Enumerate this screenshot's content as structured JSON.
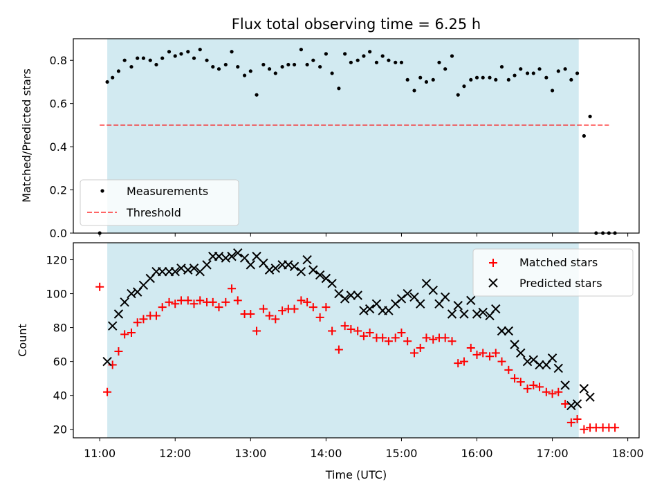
{
  "chart_data": {
    "title": "Flux total observing time = 6.25 h",
    "xlabel": "Time (UTC)",
    "x_unit": "hours UTC",
    "x_ticks": [
      {
        "value": 11,
        "label": "11:00"
      },
      {
        "value": 12,
        "label": "12:00"
      },
      {
        "value": 13,
        "label": "13:00"
      },
      {
        "value": 14,
        "label": "14:00"
      },
      {
        "value": 15,
        "label": "15:00"
      },
      {
        "value": 16,
        "label": "16:00"
      },
      {
        "value": 17,
        "label": "17:00"
      },
      {
        "value": 18,
        "label": "18:00"
      }
    ],
    "xlim": [
      10.65,
      18.15
    ],
    "observing_window": [
      11.1,
      17.35
    ],
    "colors": {
      "shade": "#add8e6",
      "measurement": "#000000",
      "threshold": "#ff0000",
      "matched": "#ff0000",
      "predicted": "#000000"
    },
    "top": {
      "type": "scatter",
      "ylabel": "Matched/Predicted stars",
      "ylim": [
        0,
        0.9
      ],
      "yticks": [
        "0.0",
        "0.2",
        "0.4",
        "0.6",
        "0.8"
      ],
      "threshold": {
        "value": 0.5,
        "x_range": [
          11.0,
          17.75
        ]
      },
      "legend": {
        "position": "lower-left",
        "entries": [
          "Measurements",
          "Threshold"
        ]
      },
      "measurements": {
        "x": [
          11.0,
          11.1,
          11.17,
          11.25,
          11.33,
          11.42,
          11.5,
          11.58,
          11.67,
          11.75,
          11.83,
          11.92,
          12.0,
          12.08,
          12.17,
          12.25,
          12.33,
          12.42,
          12.5,
          12.58,
          12.67,
          12.75,
          12.83,
          12.92,
          13.0,
          13.08,
          13.17,
          13.25,
          13.33,
          13.42,
          13.5,
          13.58,
          13.67,
          13.75,
          13.83,
          13.92,
          14.0,
          14.08,
          14.17,
          14.25,
          14.33,
          14.42,
          14.5,
          14.58,
          14.67,
          14.75,
          14.83,
          14.92,
          15.0,
          15.08,
          15.17,
          15.25,
          15.33,
          15.42,
          15.5,
          15.58,
          15.67,
          15.75,
          15.83,
          15.92,
          16.0,
          16.08,
          16.17,
          16.25,
          16.33,
          16.42,
          16.5,
          16.58,
          16.67,
          16.75,
          16.83,
          16.92,
          17.0,
          17.08,
          17.17,
          17.25,
          17.33,
          17.42,
          17.5,
          17.58,
          17.67,
          17.75,
          17.83
        ],
        "y": [
          0.0,
          0.7,
          0.72,
          0.75,
          0.8,
          0.77,
          0.81,
          0.81,
          0.8,
          0.78,
          0.81,
          0.84,
          0.82,
          0.83,
          0.84,
          0.81,
          0.85,
          0.8,
          0.77,
          0.76,
          0.78,
          0.84,
          0.77,
          0.73,
          0.75,
          0.64,
          0.78,
          0.76,
          0.74,
          0.77,
          0.78,
          0.78,
          0.85,
          0.78,
          0.8,
          0.77,
          0.83,
          0.74,
          0.67,
          0.83,
          0.79,
          0.8,
          0.82,
          0.84,
          0.79,
          0.82,
          0.8,
          0.79,
          0.79,
          0.71,
          0.66,
          0.72,
          0.7,
          0.71,
          0.79,
          0.76,
          0.82,
          0.64,
          0.68,
          0.71,
          0.72,
          0.72,
          0.72,
          0.71,
          0.77,
          0.71,
          0.73,
          0.76,
          0.74,
          0.74,
          0.76,
          0.72,
          0.66,
          0.75,
          0.76,
          0.71,
          0.74,
          0.45,
          0.54,
          0.0,
          0.0,
          0.0,
          0.0
        ]
      }
    },
    "bottom": {
      "type": "scatter",
      "ylabel": "Count",
      "ylim": [
        15,
        130
      ],
      "yticks": [
        "20",
        "40",
        "60",
        "80",
        "100",
        "120"
      ],
      "legend": {
        "position": "top-right",
        "entries": [
          "Matched stars",
          "Predicted stars"
        ]
      },
      "matched": {
        "x": [
          11.0,
          11.1,
          11.17,
          11.25,
          11.33,
          11.42,
          11.5,
          11.58,
          11.67,
          11.75,
          11.83,
          11.92,
          12.0,
          12.08,
          12.17,
          12.25,
          12.33,
          12.42,
          12.5,
          12.58,
          12.67,
          12.75,
          12.83,
          12.92,
          13.0,
          13.08,
          13.17,
          13.25,
          13.33,
          13.42,
          13.5,
          13.58,
          13.67,
          13.75,
          13.83,
          13.92,
          14.0,
          14.08,
          14.17,
          14.25,
          14.33,
          14.42,
          14.5,
          14.58,
          14.67,
          14.75,
          14.83,
          14.92,
          15.0,
          15.08,
          15.17,
          15.25,
          15.33,
          15.42,
          15.5,
          15.58,
          15.67,
          15.75,
          15.83,
          15.92,
          16.0,
          16.08,
          16.17,
          16.25,
          16.33,
          16.42,
          16.5,
          16.58,
          16.67,
          16.75,
          16.83,
          16.92,
          17.0,
          17.08,
          17.17,
          17.25,
          17.33,
          17.42,
          17.5,
          17.58,
          17.67,
          17.75,
          17.83
        ],
        "y": [
          104,
          42,
          58,
          66,
          76,
          77,
          83,
          85,
          87,
          87,
          92,
          95,
          94,
          96,
          96,
          94,
          96,
          95,
          95,
          92,
          95,
          103,
          96,
          88,
          88,
          78,
          91,
          87,
          85,
          90,
          91,
          91,
          96,
          95,
          92,
          86,
          92,
          78,
          67,
          81,
          79,
          78,
          75,
          77,
          74,
          74,
          72,
          74,
          77,
          72,
          65,
          68,
          74,
          73,
          74,
          74,
          72,
          59,
          60,
          68,
          64,
          65,
          63,
          65,
          60,
          55,
          50,
          48,
          44,
          46,
          45,
          42,
          41,
          42,
          35,
          24,
          26,
          20,
          21,
          21,
          21,
          21,
          21
        ]
      },
      "predicted": {
        "x": [
          11.1,
          11.17,
          11.25,
          11.33,
          11.42,
          11.5,
          11.58,
          11.67,
          11.75,
          11.83,
          11.92,
          12.0,
          12.08,
          12.17,
          12.25,
          12.33,
          12.42,
          12.5,
          12.58,
          12.67,
          12.75,
          12.83,
          12.92,
          13.0,
          13.08,
          13.17,
          13.25,
          13.33,
          13.42,
          13.5,
          13.58,
          13.67,
          13.75,
          13.83,
          13.92,
          14.0,
          14.08,
          14.17,
          14.25,
          14.33,
          14.42,
          14.5,
          14.58,
          14.67,
          14.75,
          14.83,
          14.92,
          15.0,
          15.08,
          15.17,
          15.25,
          15.33,
          15.42,
          15.5,
          15.58,
          15.67,
          15.75,
          15.83,
          15.92,
          16.0,
          16.08,
          16.17,
          16.25,
          16.33,
          16.42,
          16.5,
          16.58,
          16.67,
          16.75,
          16.83,
          16.92,
          17.0,
          17.08,
          17.17,
          17.25,
          17.33,
          17.42,
          17.5
        ],
        "y": [
          60,
          81,
          88,
          95,
          100,
          101,
          105,
          109,
          113,
          113,
          113,
          113,
          115,
          114,
          115,
          113,
          117,
          122,
          122,
          121,
          122,
          124,
          121,
          117,
          122,
          118,
          114,
          115,
          117,
          117,
          116,
          113,
          120,
          114,
          111,
          109,
          106,
          100,
          97,
          99,
          99,
          90,
          91,
          94,
          90,
          90,
          94,
          97,
          100,
          98,
          94,
          106,
          102,
          94,
          98,
          88,
          93,
          88,
          96,
          88,
          89,
          87,
          91,
          78,
          78,
          70,
          65,
          60,
          61,
          58,
          58,
          62,
          56,
          46,
          34,
          35,
          44,
          39
        ]
      }
    }
  }
}
